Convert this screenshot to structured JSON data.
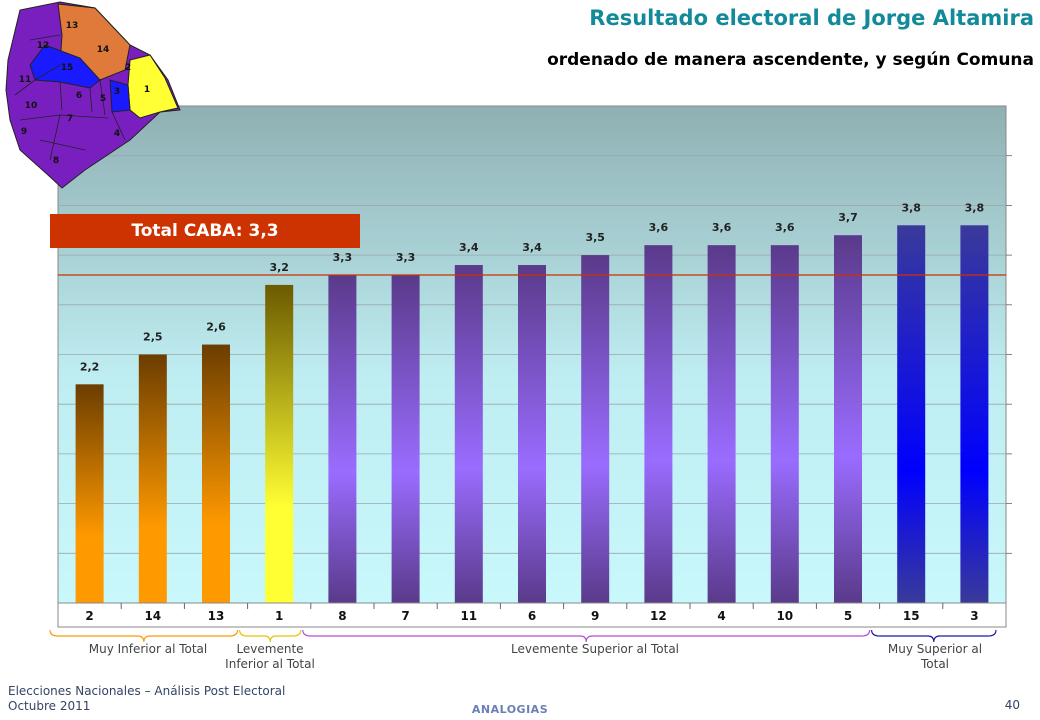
{
  "header": {
    "title": "Resultado electoral de Jorge Altamira",
    "subtitle": "ordenado de manera ascendente, y según Comuna"
  },
  "total_label": "Total CABA: 3,3",
  "total_value": 3.3,
  "map": {
    "labels": [
      "13",
      "12",
      "14",
      "15",
      "2",
      "11",
      "1",
      "3",
      "6",
      "5",
      "10",
      "7",
      "4",
      "9",
      "8"
    ],
    "colors": {
      "very_low": "#ff9900",
      "slightly_low": "#ffff33",
      "slightly_high": "#7a1fbf",
      "very_high": "#1a1aff",
      "purple_fill": "#7a1fbf",
      "orange_fill": "#e07a3a"
    }
  },
  "groups": [
    {
      "label": "Muy Inferior al Total",
      "color": "#ff9900"
    },
    {
      "label": "Levemente Inferior al Total",
      "color": "#e6c300"
    },
    {
      "label": "Levemente Superior al Total",
      "color": "#b44fd4"
    },
    {
      "label": "Muy Superior al Total",
      "color": "#1a1aa0"
    }
  ],
  "chart_data": {
    "type": "bar",
    "categories": [
      "2",
      "14",
      "13",
      "1",
      "8",
      "7",
      "11",
      "6",
      "9",
      "12",
      "4",
      "10",
      "5",
      "15",
      "3"
    ],
    "values": [
      2.2,
      2.5,
      2.6,
      3.2,
      3.3,
      3.3,
      3.4,
      3.4,
      3.5,
      3.6,
      3.6,
      3.6,
      3.7,
      3.8,
      3.8
    ],
    "value_labels": [
      "2,2",
      "2,5",
      "2,6",
      "3,2",
      "3,3",
      "3,3",
      "3,4",
      "3,4",
      "3,5",
      "3,6",
      "3,6",
      "3,6",
      "3,7",
      "3,8",
      "3,8"
    ],
    "groups": [
      0,
      0,
      0,
      1,
      2,
      2,
      2,
      2,
      2,
      2,
      2,
      2,
      2,
      3,
      3
    ],
    "ylim": [
      0,
      5
    ],
    "grid": true,
    "reference_line": 3.3,
    "colors": {
      "very_low": [
        "#ff9900",
        "#6b3d00"
      ],
      "slightly_low": [
        "#ffff33",
        "#6b5a00"
      ],
      "slightly_high": [
        "#9a6cff",
        "#5a3a8a"
      ],
      "very_high": [
        "#0000ff",
        "#3a3a9a"
      ],
      "reference_line": "#cc3300"
    }
  },
  "footer": {
    "line1": "Elecciones Nacionales – Análisis Post Electoral",
    "line2": "Octubre 2011",
    "brand": "ANALOGIAS",
    "page": "40"
  }
}
